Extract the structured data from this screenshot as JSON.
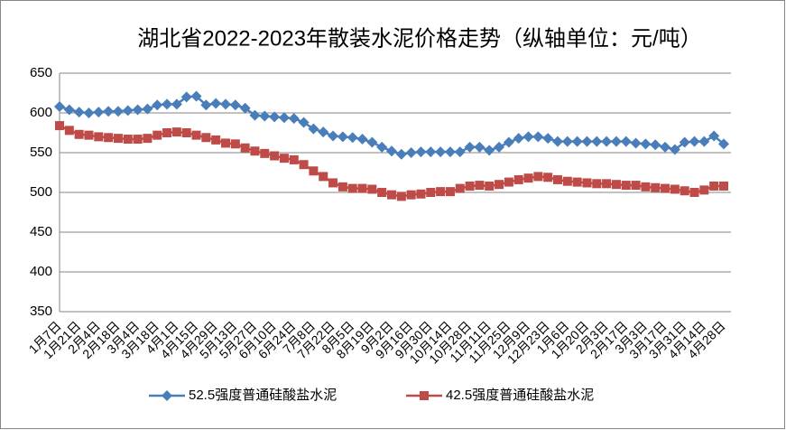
{
  "chart_data": {
    "type": "line",
    "title": "湖北省2022-2023年散装水泥价格走势（纵轴单位：元/吨）",
    "categories": [
      "1月7日",
      null,
      "1月21日",
      null,
      "2月4日",
      null,
      "2月18日",
      null,
      "3月4日",
      null,
      "3月18日",
      null,
      "4月1日",
      null,
      "4月15日",
      null,
      "4月29日",
      null,
      "5月13日",
      null,
      "5月27日",
      null,
      "6月10日",
      null,
      "6月24日",
      null,
      "7月8日",
      null,
      "7月22日",
      null,
      "8月5日",
      null,
      "8月19日",
      null,
      "9月2日",
      null,
      "9月16日",
      null,
      "9月30日",
      null,
      "10月14日",
      null,
      "10月28日",
      null,
      "11月11日",
      null,
      "11月25日",
      null,
      "12月9日",
      null,
      "12月23日",
      null,
      "1月6日",
      null,
      "1月20日",
      null,
      "2月3日",
      null,
      "2月17日",
      null,
      "3月3日",
      null,
      "3月17日",
      null,
      "3月31日",
      null,
      "4月14日",
      null,
      "4月28日"
    ],
    "series": [
      {
        "name": "52.5强度普通硅酸盐水泥",
        "color": "#4a7ebb",
        "marker": "diamond",
        "values": [
          608,
          604,
          601,
          600,
          601,
          602,
          602,
          603,
          604,
          605,
          610,
          611,
          611,
          620,
          621,
          610,
          612,
          611,
          610,
          606,
          597,
          596,
          595,
          594,
          593,
          588,
          580,
          576,
          571,
          570,
          569,
          567,
          563,
          557,
          552,
          548,
          550,
          551,
          551,
          551,
          551,
          551,
          557,
          557,
          553,
          557,
          563,
          568,
          570,
          570,
          568,
          564,
          564,
          564,
          564,
          564,
          564,
          564,
          564,
          562,
          561,
          560,
          557,
          554,
          563,
          564,
          564,
          571,
          561
        ]
      },
      {
        "name": "42.5强度普通硅酸盐水泥",
        "color": "#be4b48",
        "marker": "square",
        "values": [
          584,
          578,
          573,
          572,
          570,
          569,
          568,
          567,
          567,
          568,
          572,
          575,
          576,
          575,
          572,
          569,
          566,
          562,
          561,
          556,
          552,
          549,
          546,
          543,
          541,
          535,
          527,
          520,
          512,
          507,
          505,
          505,
          504,
          500,
          497,
          495,
          497,
          498,
          500,
          501,
          501,
          505,
          508,
          509,
          508,
          510,
          513,
          516,
          518,
          520,
          519,
          516,
          514,
          513,
          512,
          511,
          511,
          510,
          509,
          509,
          507,
          506,
          505,
          504,
          502,
          500,
          503,
          508,
          508
        ]
      }
    ],
    "ylim": [
      350,
      650
    ],
    "yticks": [
      350,
      400,
      450,
      500,
      550,
      600,
      650
    ],
    "grid": true,
    "legend": "bottom"
  }
}
